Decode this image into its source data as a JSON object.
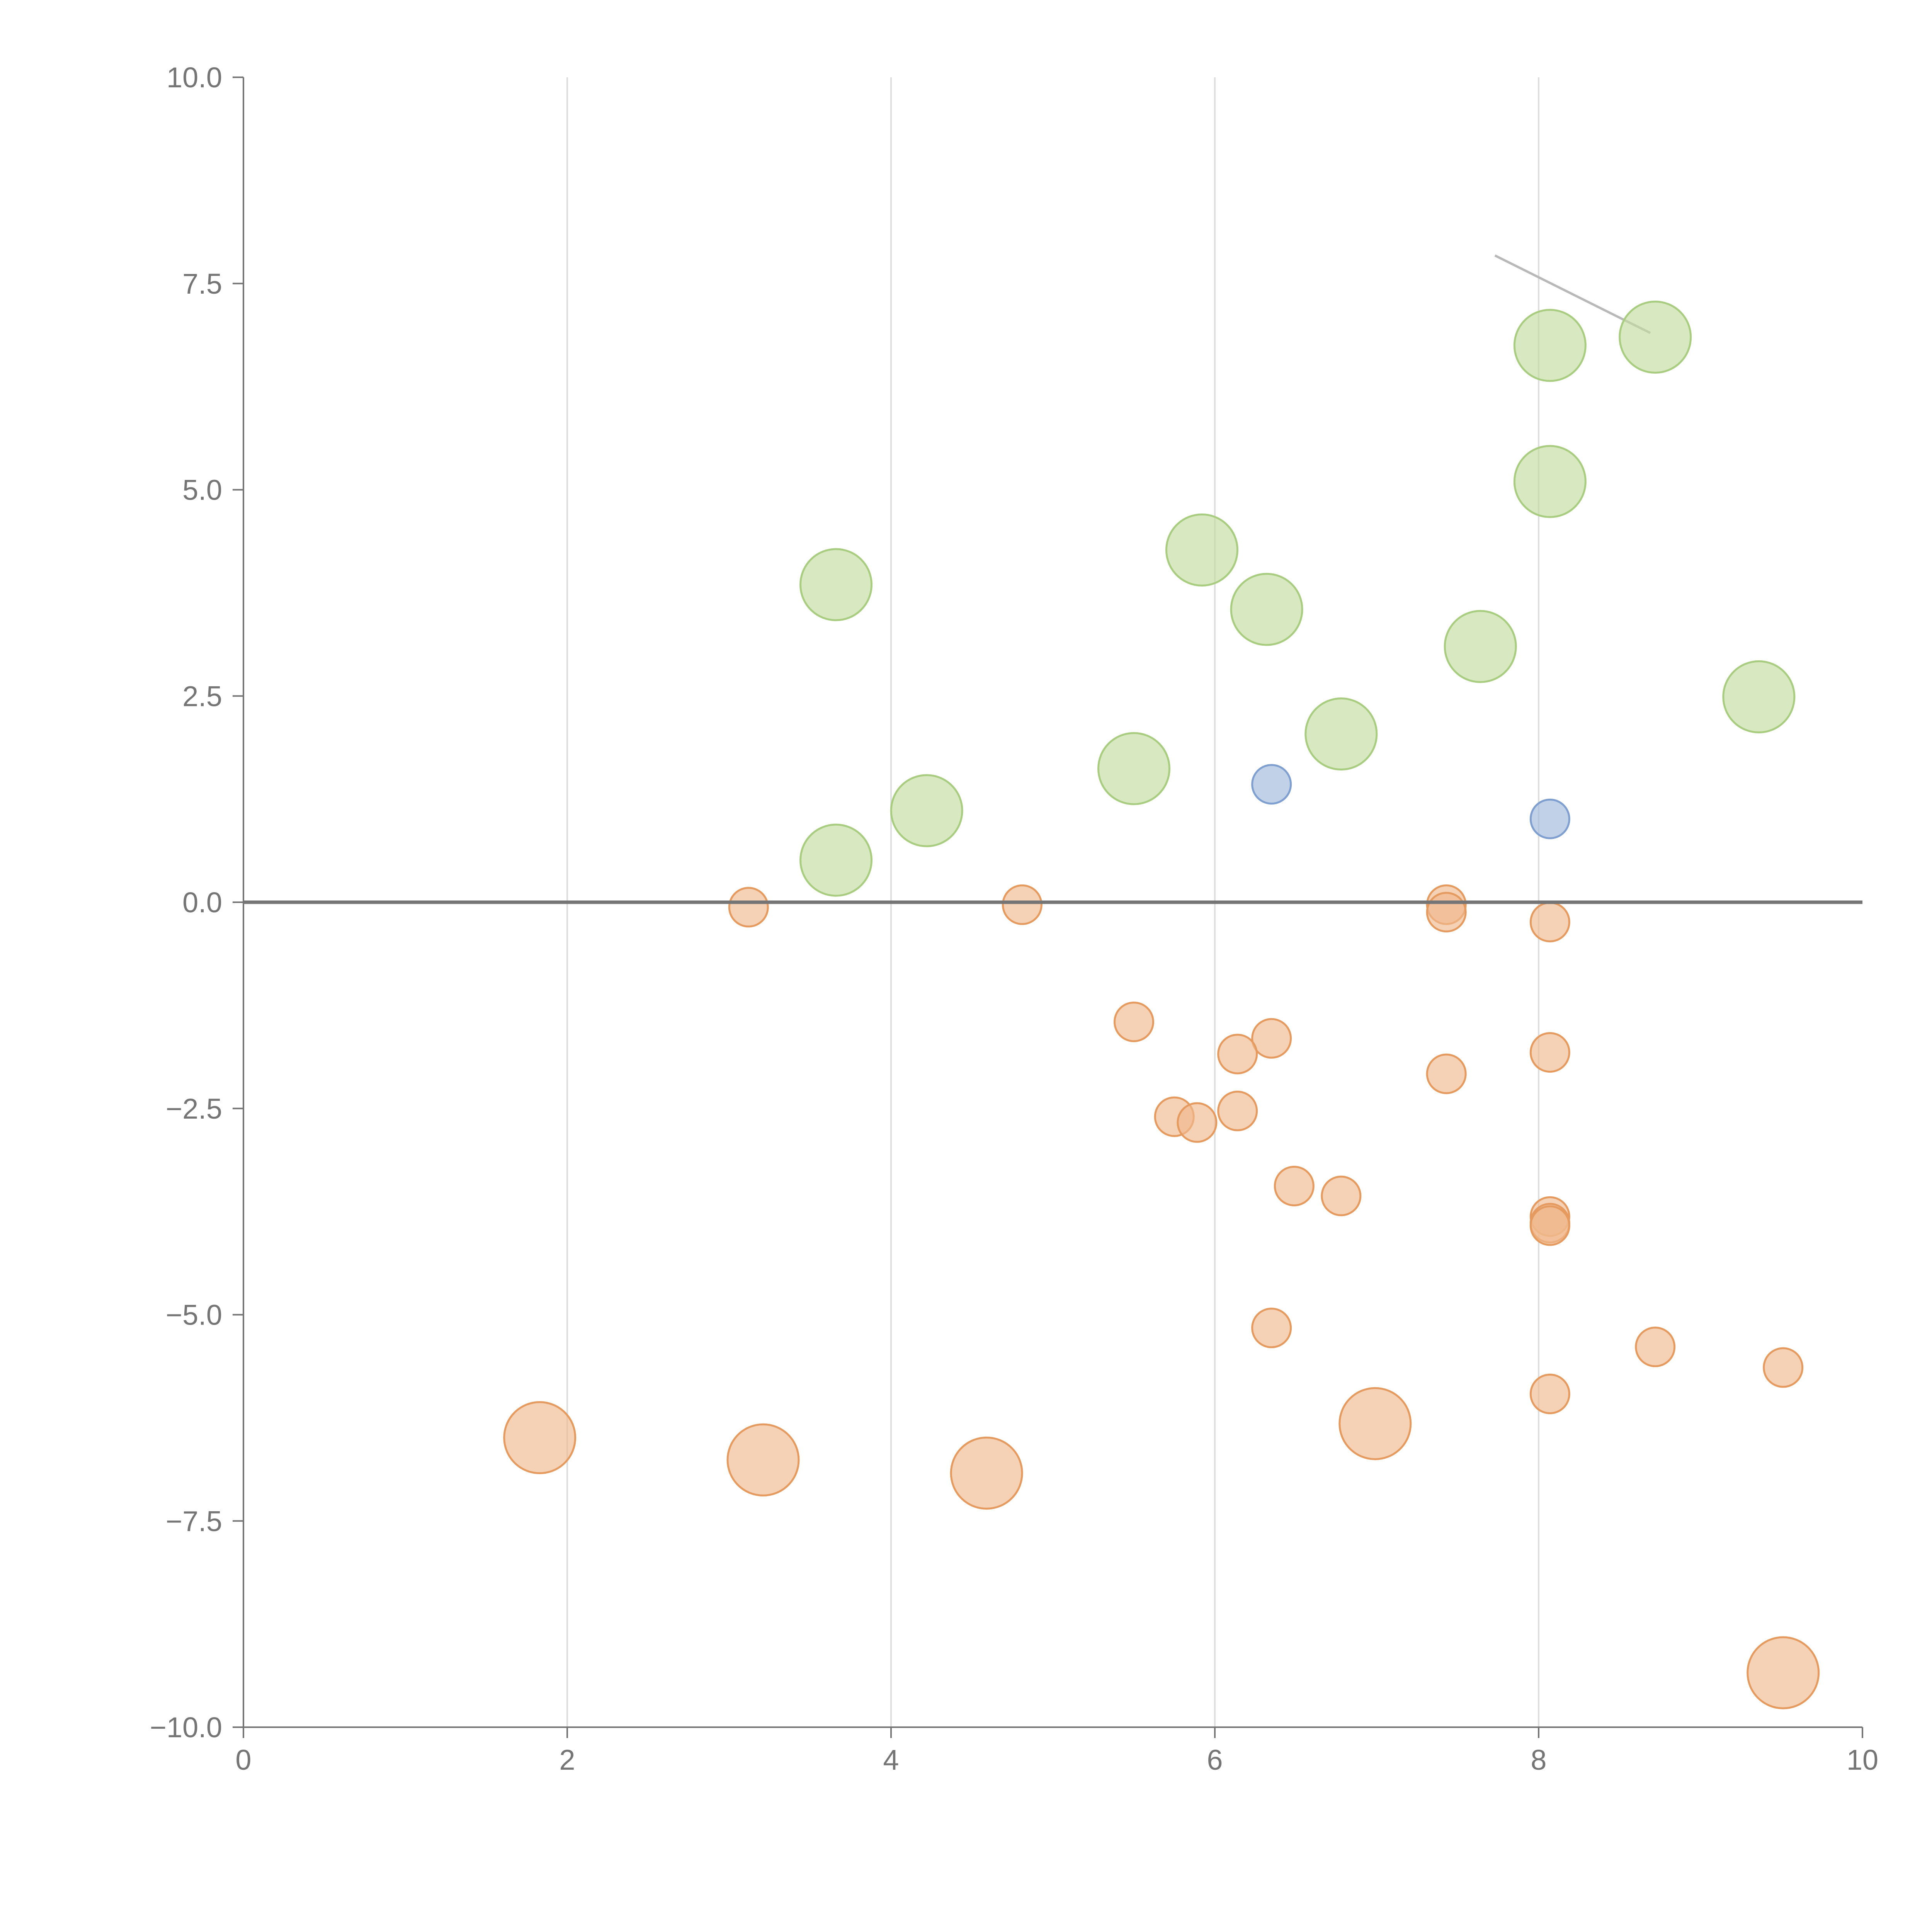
{
  "chart_data": {
    "type": "scatter",
    "title": "",
    "xlabel": "",
    "ylabel": "",
    "xlim": [
      0,
      10
    ],
    "ylim": [
      -10,
      10
    ],
    "grid": "vertical",
    "x_ticks": [
      0,
      2,
      4,
      6,
      8,
      10
    ],
    "y_ticks": [
      10,
      7.5,
      5,
      2.5,
      0,
      -2.5,
      -5,
      -7.5,
      -10
    ],
    "x_tick_labels": [
      "0",
      "2",
      "4",
      "6",
      "8",
      "10"
    ],
    "y_tick_labels": [
      "10.0",
      "7.5",
      "5.0",
      "2.5",
      "0.0",
      "−2.5",
      "−5.0",
      "−7.5",
      "−10.0"
    ],
    "colors": {
      "green_fill": "#c3dba0",
      "green_stroke": "#a9cd80",
      "blue_fill": "#9fb8dc",
      "blue_stroke": "#7e9fcf",
      "orange_fill": "#efb88e",
      "orange_stroke": "#e59a5f"
    },
    "series": [
      {
        "name": "green-large",
        "color_key": "green",
        "size": "large",
        "points": [
          {
            "x": 8.72,
            "y": 6.85
          },
          {
            "x": 8.07,
            "y": 6.75
          },
          {
            "x": 8.07,
            "y": 5.1
          },
          {
            "x": 5.92,
            "y": 4.27
          },
          {
            "x": 3.66,
            "y": 3.85
          },
          {
            "x": 6.32,
            "y": 3.55
          },
          {
            "x": 7.64,
            "y": 3.1
          },
          {
            "x": 9.36,
            "y": 2.49
          },
          {
            "x": 6.78,
            "y": 2.04
          },
          {
            "x": 5.5,
            "y": 1.62
          },
          {
            "x": 4.22,
            "y": 1.11
          },
          {
            "x": 3.66,
            "y": 0.51
          }
        ]
      },
      {
        "name": "blue-small",
        "color_key": "blue",
        "size": "small",
        "points": [
          {
            "x": 6.35,
            "y": 1.43
          },
          {
            "x": 8.07,
            "y": 1.01
          }
        ]
      },
      {
        "name": "orange-small",
        "color_key": "orange",
        "size": "small",
        "points": [
          {
            "x": 3.12,
            "y": -0.06
          },
          {
            "x": 4.81,
            "y": -0.03
          },
          {
            "x": 7.43,
            "y": -0.03
          },
          {
            "x": 7.43,
            "y": -0.12
          },
          {
            "x": 8.07,
            "y": -0.24
          },
          {
            "x": 5.5,
            "y": -1.45
          },
          {
            "x": 6.35,
            "y": -1.65
          },
          {
            "x": 6.14,
            "y": -1.84
          },
          {
            "x": 8.07,
            "y": -1.82
          },
          {
            "x": 7.43,
            "y": -2.08
          },
          {
            "x": 6.14,
            "y": -2.53
          },
          {
            "x": 5.75,
            "y": -2.6
          },
          {
            "x": 5.89,
            "y": -2.67
          },
          {
            "x": 6.49,
            "y": -3.44
          },
          {
            "x": 6.78,
            "y": -3.56
          },
          {
            "x": 8.07,
            "y": -3.81
          },
          {
            "x": 8.07,
            "y": -3.89
          },
          {
            "x": 8.07,
            "y": -3.92
          },
          {
            "x": 6.35,
            "y": -5.16
          },
          {
            "x": 8.72,
            "y": -5.39
          },
          {
            "x": 9.51,
            "y": -5.64
          },
          {
            "x": 8.07,
            "y": -5.96
          }
        ]
      },
      {
        "name": "orange-large",
        "color_key": "orange",
        "size": "large",
        "points": [
          {
            "x": 1.83,
            "y": -6.49
          },
          {
            "x": 3.21,
            "y": -6.76
          },
          {
            "x": 4.59,
            "y": -6.92
          },
          {
            "x": 6.99,
            "y": -6.32
          },
          {
            "x": 9.51,
            "y": -9.34
          }
        ]
      }
    ],
    "annotation_line": {
      "x1": 7.73,
      "y1": 7.84,
      "x2": 8.69,
      "y2": 6.9
    }
  }
}
